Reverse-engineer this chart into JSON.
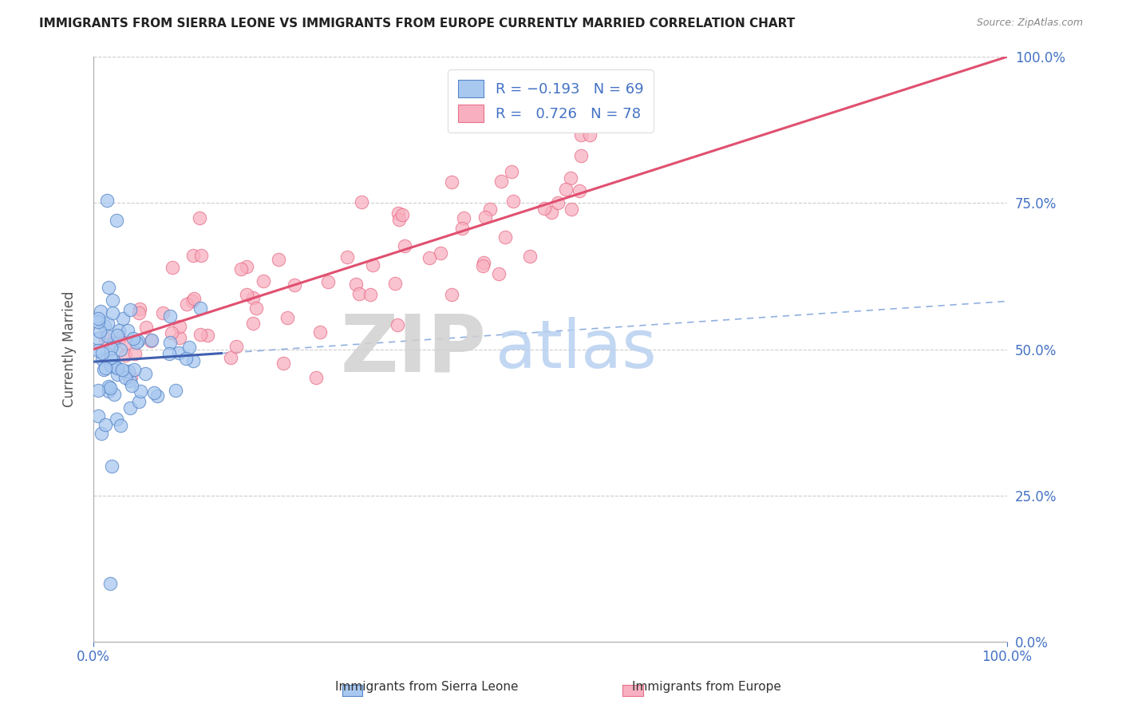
{
  "title": "IMMIGRANTS FROM SIERRA LEONE VS IMMIGRANTS FROM EUROPE CURRENTLY MARRIED CORRELATION CHART",
  "source": "Source: ZipAtlas.com",
  "ylabel_left": "Currently Married",
  "legend_label1": "Immigrants from Sierra Leone",
  "legend_label2": "Immigrants from Europe",
  "R1": -0.193,
  "N1": 69,
  "R2": 0.726,
  "N2": 78,
  "color1": "#a8c8f0",
  "color2": "#f8b0c0",
  "color1_edge": "#5585c8",
  "color2_edge": "#e8708a",
  "trend1_color": "#4060b0",
  "trend2_color": "#e05070",
  "trend1_ext_color": "#90b0e0",
  "xmin": 0.0,
  "xmax": 1.0,
  "ymin": 0.0,
  "ymax": 1.0,
  "yticks": [
    0.0,
    0.25,
    0.5,
    0.75,
    1.0
  ],
  "right_tick_labels": [
    "0.0%",
    "25.0%",
    "50.0%",
    "75.0%",
    "100.0%"
  ],
  "bottom_xtick_labels": [
    "0.0%",
    "100.0%"
  ]
}
